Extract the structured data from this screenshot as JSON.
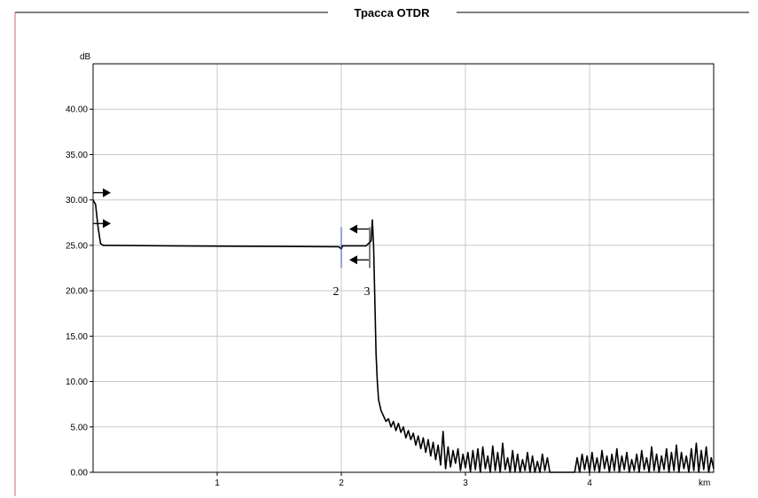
{
  "chart_data": {
    "type": "line",
    "title": "Трасса OTDR",
    "ylabel_unit": "dB",
    "xlabel_unit": "km",
    "xlim": [
      0,
      5.0
    ],
    "ylim": [
      0,
      45
    ],
    "x_ticks": [
      {
        "value": 1,
        "label": "1"
      },
      {
        "value": 2,
        "label": "2"
      },
      {
        "value": 3,
        "label": "3"
      },
      {
        "value": 4,
        "label": "4"
      }
    ],
    "y_ticks": [
      {
        "value": 0,
        "label": "0.00"
      },
      {
        "value": 5,
        "label": "5.00"
      },
      {
        "value": 10,
        "label": "10.00"
      },
      {
        "value": 15,
        "label": "15.00"
      },
      {
        "value": 20,
        "label": "20.00"
      },
      {
        "value": 25,
        "label": "25.00"
      },
      {
        "value": 30,
        "label": "30.00"
      },
      {
        "value": 35,
        "label": "35.00"
      },
      {
        "value": 40,
        "label": "40.00"
      }
    ],
    "grid": true,
    "series": [
      {
        "color": "#000000",
        "points": [
          [
            0.0,
            30.0
          ],
          [
            0.02,
            29.5
          ],
          [
            0.04,
            27.0
          ],
          [
            0.06,
            25.2
          ],
          [
            0.08,
            25.0
          ],
          [
            0.3,
            24.98
          ],
          [
            0.6,
            24.95
          ],
          [
            0.9,
            24.92
          ],
          [
            1.2,
            24.9
          ],
          [
            1.5,
            24.88
          ],
          [
            1.8,
            24.86
          ],
          [
            1.98,
            24.85
          ],
          [
            2.0,
            24.6
          ],
          [
            2.01,
            24.95
          ],
          [
            2.05,
            24.95
          ],
          [
            2.2,
            24.95
          ],
          [
            2.24,
            25.5
          ],
          [
            2.25,
            27.8
          ],
          [
            2.26,
            25.0
          ],
          [
            2.27,
            19.0
          ],
          [
            2.28,
            13.0
          ],
          [
            2.29,
            10.0
          ],
          [
            2.3,
            8.0
          ],
          [
            2.32,
            6.8
          ],
          [
            2.34,
            6.2
          ],
          [
            2.36,
            5.6
          ],
          [
            2.38,
            5.9
          ],
          [
            2.4,
            5.0
          ],
          [
            2.42,
            5.6
          ],
          [
            2.44,
            4.6
          ],
          [
            2.46,
            5.4
          ],
          [
            2.48,
            4.4
          ],
          [
            2.5,
            5.0
          ],
          [
            2.52,
            3.8
          ],
          [
            2.54,
            4.6
          ],
          [
            2.56,
            3.6
          ],
          [
            2.58,
            4.3
          ],
          [
            2.6,
            3.0
          ],
          [
            2.62,
            4.0
          ],
          [
            2.64,
            2.6
          ],
          [
            2.66,
            3.8
          ],
          [
            2.68,
            2.2
          ],
          [
            2.7,
            3.6
          ],
          [
            2.72,
            1.8
          ],
          [
            2.74,
            3.3
          ],
          [
            2.76,
            1.4
          ],
          [
            2.78,
            3.0
          ],
          [
            2.8,
            0.8
          ],
          [
            2.82,
            4.5
          ],
          [
            2.84,
            0.4
          ],
          [
            2.86,
            2.8
          ],
          [
            2.88,
            0.6
          ],
          [
            2.9,
            2.4
          ],
          [
            2.92,
            1.0
          ],
          [
            2.94,
            2.6
          ],
          [
            2.96,
            0.2
          ],
          [
            2.98,
            2.0
          ],
          [
            3.0,
            0.5
          ],
          [
            3.02,
            2.2
          ],
          [
            3.04,
            0.1
          ],
          [
            3.06,
            2.4
          ],
          [
            3.08,
            0.3
          ],
          [
            3.1,
            2.6
          ],
          [
            3.12,
            0.0
          ],
          [
            3.14,
            2.8
          ],
          [
            3.16,
            0.4
          ],
          [
            3.18,
            1.8
          ],
          [
            3.2,
            0.0
          ],
          [
            3.22,
            2.9
          ],
          [
            3.24,
            0.2
          ],
          [
            3.26,
            2.2
          ],
          [
            3.28,
            0.0
          ],
          [
            3.3,
            3.2
          ],
          [
            3.32,
            0.3
          ],
          [
            3.34,
            1.6
          ],
          [
            3.36,
            0.0
          ],
          [
            3.38,
            2.4
          ],
          [
            3.4,
            0.1
          ],
          [
            3.42,
            2.0
          ],
          [
            3.44,
            0.0
          ],
          [
            3.46,
            1.4
          ],
          [
            3.48,
            0.2
          ],
          [
            3.5,
            2.2
          ],
          [
            3.52,
            0.0
          ],
          [
            3.54,
            1.8
          ],
          [
            3.56,
            0.0
          ],
          [
            3.58,
            1.2
          ],
          [
            3.6,
            0.0
          ],
          [
            3.62,
            2.0
          ],
          [
            3.64,
            0.2
          ],
          [
            3.66,
            1.6
          ],
          [
            3.68,
            0.0
          ],
          [
            3.7,
            0.0
          ],
          [
            3.8,
            0.0
          ],
          [
            3.85,
            0.0
          ],
          [
            3.88,
            0.0
          ],
          [
            3.9,
            1.6
          ],
          [
            3.92,
            0.0
          ],
          [
            3.94,
            2.0
          ],
          [
            3.96,
            0.3
          ],
          [
            3.98,
            1.8
          ],
          [
            4.0,
            0.0
          ],
          [
            4.02,
            2.2
          ],
          [
            4.04,
            0.2
          ],
          [
            4.06,
            1.6
          ],
          [
            4.08,
            0.0
          ],
          [
            4.1,
            2.4
          ],
          [
            4.12,
            0.4
          ],
          [
            4.14,
            1.8
          ],
          [
            4.16,
            0.0
          ],
          [
            4.18,
            2.0
          ],
          [
            4.2,
            0.2
          ],
          [
            4.22,
            2.6
          ],
          [
            4.24,
            0.0
          ],
          [
            4.26,
            1.8
          ],
          [
            4.28,
            0.3
          ],
          [
            4.3,
            2.2
          ],
          [
            4.32,
            0.0
          ],
          [
            4.34,
            1.4
          ],
          [
            4.36,
            0.2
          ],
          [
            4.38,
            2.0
          ],
          [
            4.4,
            0.0
          ],
          [
            4.42,
            2.4
          ],
          [
            4.44,
            0.3
          ],
          [
            4.46,
            1.6
          ],
          [
            4.48,
            0.0
          ],
          [
            4.5,
            2.8
          ],
          [
            4.52,
            0.2
          ],
          [
            4.54,
            2.0
          ],
          [
            4.56,
            0.0
          ],
          [
            4.58,
            1.8
          ],
          [
            4.6,
            0.3
          ],
          [
            4.62,
            2.6
          ],
          [
            4.64,
            0.0
          ],
          [
            4.66,
            2.2
          ],
          [
            4.68,
            0.2
          ],
          [
            4.7,
            3.0
          ],
          [
            4.72,
            0.0
          ],
          [
            4.74,
            2.2
          ],
          [
            4.76,
            0.4
          ],
          [
            4.78,
            1.8
          ],
          [
            4.8,
            0.0
          ],
          [
            4.82,
            2.6
          ],
          [
            4.84,
            0.2
          ],
          [
            4.86,
            3.2
          ],
          [
            4.88,
            0.0
          ],
          [
            4.9,
            2.4
          ],
          [
            4.92,
            0.3
          ],
          [
            4.94,
            2.8
          ],
          [
            4.96,
            0.0
          ],
          [
            4.98,
            1.6
          ],
          [
            5.0,
            0.4
          ]
        ]
      }
    ],
    "markers": [
      {
        "x": 2.0,
        "label": "2"
      },
      {
        "x": 2.25,
        "label": "3"
      }
    ]
  }
}
